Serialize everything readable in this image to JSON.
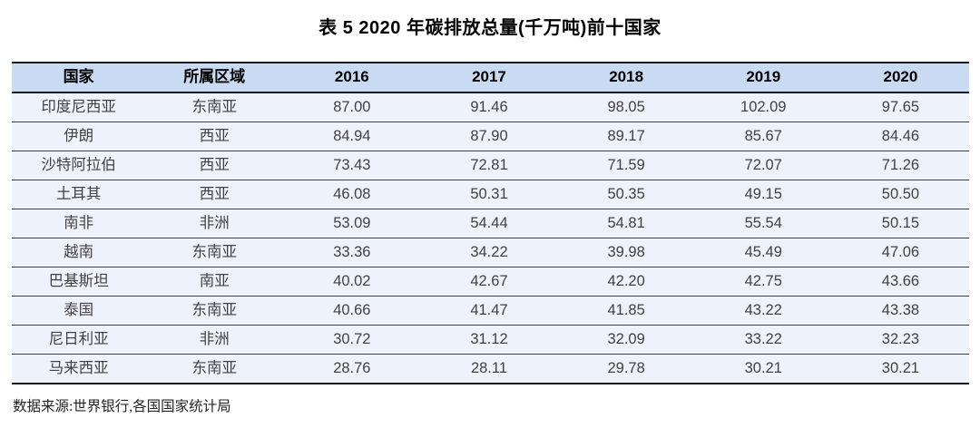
{
  "title": "表 5  2020 年碳排放总量(千万吨)前十国家",
  "table": {
    "columns": [
      "国家",
      "所属区域",
      "2016",
      "2017",
      "2018",
      "2019",
      "2020"
    ],
    "rows": [
      [
        "印度尼西亚",
        "东南亚",
        "87.00",
        "91.46",
        "98.05",
        "102.09",
        "97.65"
      ],
      [
        "伊朗",
        "西亚",
        "84.94",
        "87.90",
        "89.17",
        "85.67",
        "84.46"
      ],
      [
        "沙特阿拉伯",
        "西亚",
        "73.43",
        "72.81",
        "71.59",
        "72.07",
        "71.26"
      ],
      [
        "土耳其",
        "西亚",
        "46.08",
        "50.31",
        "50.35",
        "49.15",
        "50.50"
      ],
      [
        "南非",
        "非洲",
        "53.09",
        "54.44",
        "54.81",
        "55.54",
        "50.15"
      ],
      [
        "越南",
        "东南亚",
        "33.36",
        "34.22",
        "39.98",
        "45.49",
        "47.06"
      ],
      [
        "巴基斯坦",
        "南亚",
        "40.02",
        "42.67",
        "42.20",
        "42.75",
        "43.66"
      ],
      [
        "泰国",
        "东南亚",
        "40.66",
        "41.47",
        "41.85",
        "43.22",
        "43.38"
      ],
      [
        "尼日利亚",
        "非洲",
        "30.72",
        "31.12",
        "32.09",
        "33.22",
        "32.23"
      ],
      [
        "马来西亚",
        "东南亚",
        "28.76",
        "28.11",
        "29.78",
        "30.21",
        "30.21"
      ]
    ]
  },
  "source_note": "数据来源:世界银行,各国国家统计局",
  "colors": {
    "header_bg": "#c9dbf3",
    "row_bg": "#eef3fb",
    "heavy_border": "#15181c",
    "row_border": "#383f47",
    "header_text": "#000000",
    "body_text": "#414141"
  }
}
